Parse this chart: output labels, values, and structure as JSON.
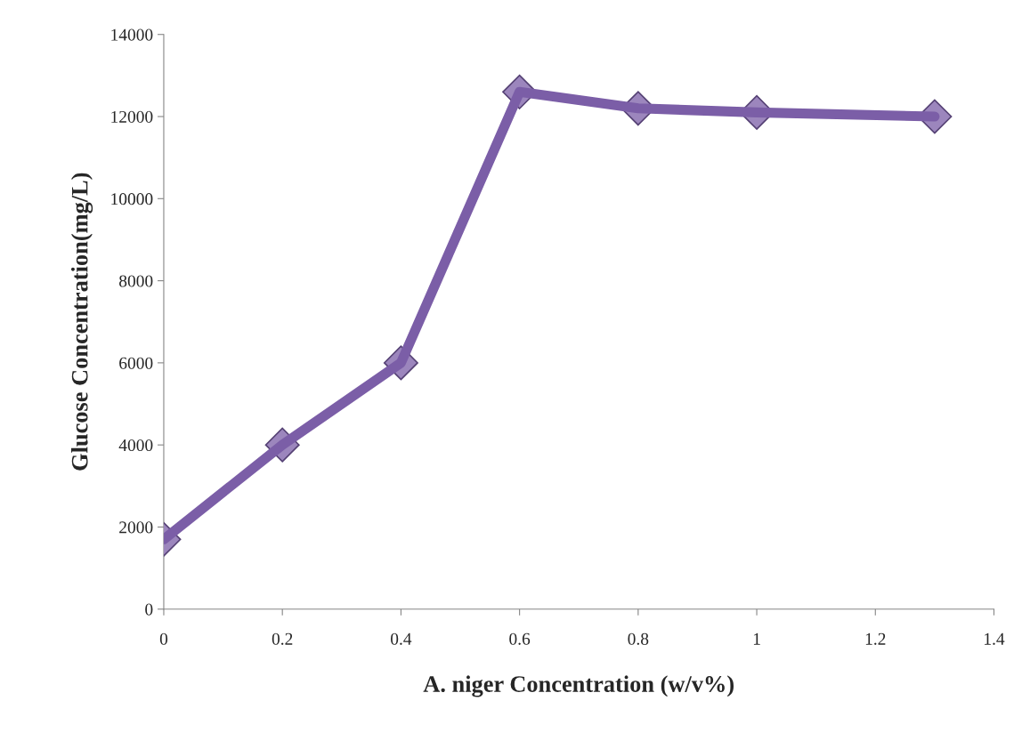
{
  "chart_data": {
    "type": "line",
    "xlabel": "A. niger Concentration (w/v%)",
    "ylabel": "Glucose Concentration(mg/L)",
    "x": [
      0,
      0.2,
      0.4,
      0.6,
      0.8,
      1,
      1.3
    ],
    "series": [
      {
        "color": "#7b5ea7",
        "values": [
          1700,
          4000,
          6000,
          12600,
          12200,
          12100,
          12000
        ]
      }
    ],
    "xlim": [
      0,
      1.4
    ],
    "xticks": [
      0,
      0.2,
      0.4,
      0.6,
      0.8,
      1,
      1.2,
      1.4
    ],
    "ylim": [
      0,
      14000
    ],
    "yticks": [
      0,
      2000,
      4000,
      6000,
      8000,
      10000,
      12000,
      14000
    ],
    "marker": "diamond",
    "line_style": "solid",
    "grid": false,
    "legend": false
  }
}
